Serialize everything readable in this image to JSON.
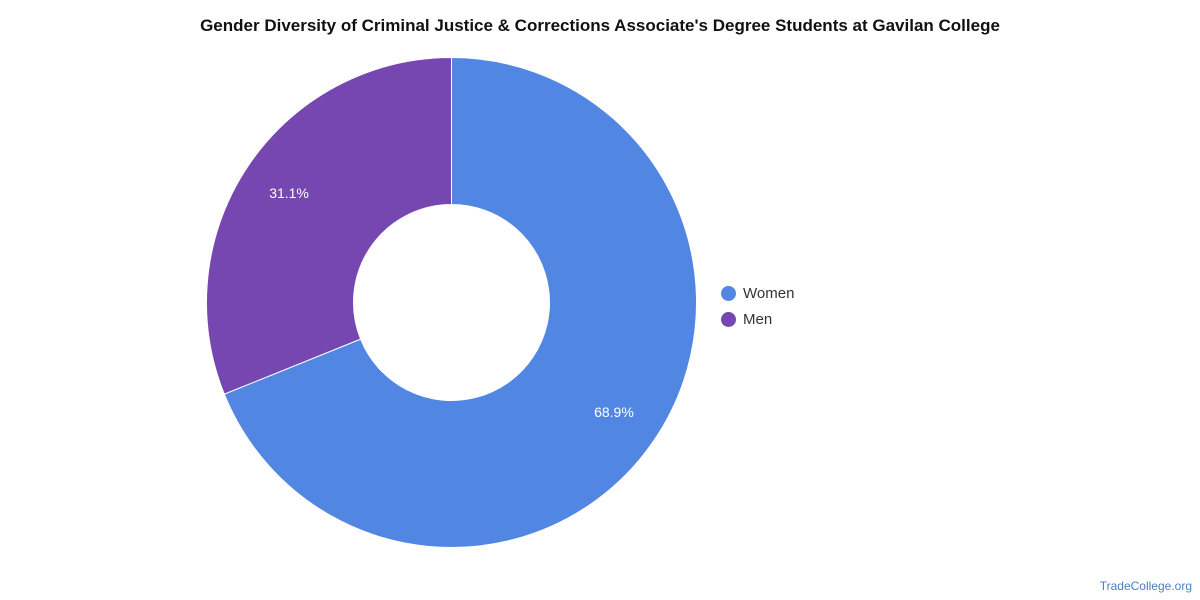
{
  "chart_data": {
    "type": "pie",
    "title": "Gender Diversity of Criminal Justice & Corrections Associate's Degree Students at Gavilan College",
    "categories": [
      "Women",
      "Men"
    ],
    "values": [
      68.9,
      31.1
    ],
    "value_labels": [
      "68.9%",
      "31.1%"
    ],
    "colors": [
      "#5286e3",
      "#7647b1"
    ],
    "donut": true,
    "legend_position": "right"
  },
  "watermark": "TradeCollege.org"
}
